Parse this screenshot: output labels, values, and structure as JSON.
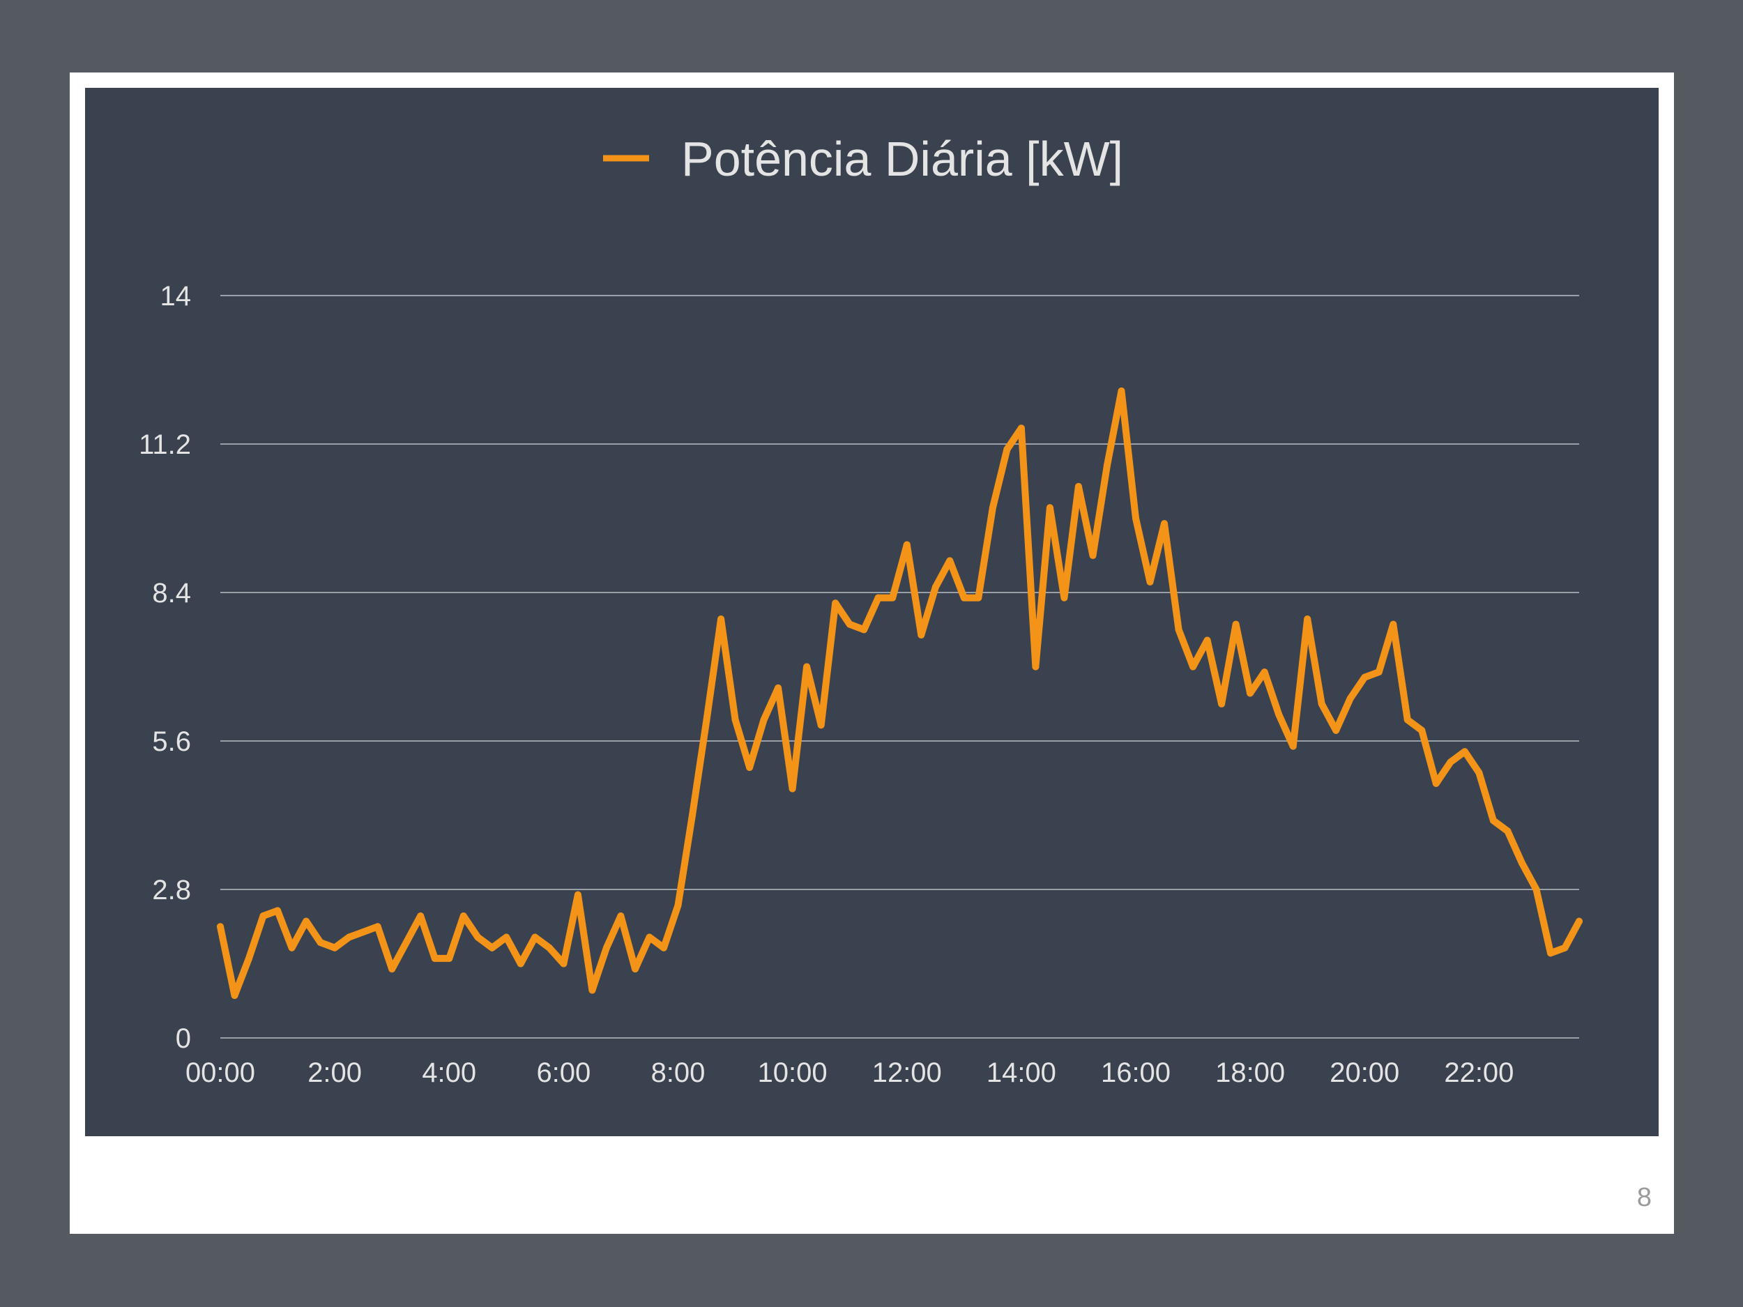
{
  "slide": {
    "page_number": "8"
  },
  "colors": {
    "outer_background": "#545a5f",
    "slide_background": "#ffffff",
    "chart_background": "#3b424f",
    "series": "#f39418",
    "gridline": "#9aa0a8",
    "text": "#e4e4e4"
  },
  "chart_data": {
    "type": "line",
    "title": "",
    "xlabel": "",
    "ylabel": "",
    "legend": {
      "position": "top-center",
      "entries": [
        "Potência Diária [kW]"
      ]
    },
    "grid": true,
    "ylim": [
      0,
      14
    ],
    "y_ticks": [
      "0",
      "2.8",
      "5.6",
      "8.4",
      "11.2",
      "14"
    ],
    "x_ticks": [
      "00:00",
      "2:00",
      "4:00",
      "6:00",
      "8:00",
      "10:00",
      "12:00",
      "14:00",
      "16:00",
      "18:00",
      "20:00",
      "22:00"
    ],
    "series": [
      {
        "name": "Potência Diária [kW]",
        "x": [
          "00:00",
          "00:15",
          "00:30",
          "00:45",
          "01:00",
          "01:15",
          "01:30",
          "01:45",
          "02:00",
          "02:15",
          "02:30",
          "02:45",
          "03:00",
          "03:15",
          "03:30",
          "03:45",
          "04:00",
          "04:15",
          "04:30",
          "04:45",
          "05:00",
          "05:15",
          "05:30",
          "05:45",
          "06:00",
          "06:15",
          "06:30",
          "06:45",
          "07:00",
          "07:15",
          "07:30",
          "07:45",
          "08:00",
          "08:15",
          "08:30",
          "08:45",
          "09:00",
          "09:15",
          "09:30",
          "09:45",
          "10:00",
          "10:15",
          "10:30",
          "10:45",
          "11:00",
          "11:15",
          "11:30",
          "11:45",
          "12:00",
          "12:15",
          "12:30",
          "12:45",
          "13:00",
          "13:15",
          "13:30",
          "13:45",
          "14:00",
          "14:15",
          "14:30",
          "14:45",
          "15:00",
          "15:15",
          "15:30",
          "15:45",
          "16:00",
          "16:15",
          "16:30",
          "16:45",
          "17:00",
          "17:15",
          "17:30",
          "17:45",
          "18:00",
          "18:15",
          "18:30",
          "18:45",
          "19:00",
          "19:15",
          "19:30",
          "19:45",
          "20:00",
          "20:15",
          "20:30",
          "20:45",
          "21:00",
          "21:15",
          "21:30",
          "21:45",
          "22:00",
          "22:15",
          "22:30",
          "22:45",
          "23:00",
          "23:15",
          "23:30",
          "23:45"
        ],
        "values": [
          2.1,
          0.8,
          1.5,
          2.3,
          2.4,
          1.7,
          2.2,
          1.8,
          1.7,
          1.9,
          2.0,
          2.1,
          1.3,
          1.8,
          2.3,
          1.5,
          1.5,
          2.3,
          1.9,
          1.7,
          1.9,
          1.4,
          1.9,
          1.7,
          1.4,
          2.7,
          0.9,
          1.7,
          2.3,
          1.3,
          1.9,
          1.7,
          2.5,
          4.2,
          6.0,
          7.9,
          6.0,
          5.1,
          6.0,
          6.6,
          4.7,
          7.0,
          5.9,
          8.2,
          7.8,
          7.7,
          8.3,
          8.3,
          9.3,
          7.6,
          8.5,
          9.0,
          8.3,
          8.3,
          10.0,
          11.1,
          11.5,
          7.0,
          10.0,
          8.3,
          10.4,
          9.1,
          10.8,
          12.2,
          9.8,
          8.6,
          9.7,
          7.7,
          7.0,
          7.5,
          6.3,
          7.8,
          6.5,
          6.9,
          6.1,
          5.5,
          7.9,
          6.3,
          5.8,
          6.4,
          6.8,
          6.9,
          7.8,
          6.0,
          5.8,
          4.8,
          5.2,
          5.4,
          5.0,
          4.1,
          3.9,
          3.3,
          2.8,
          1.6,
          1.7,
          2.2
        ]
      }
    ]
  }
}
